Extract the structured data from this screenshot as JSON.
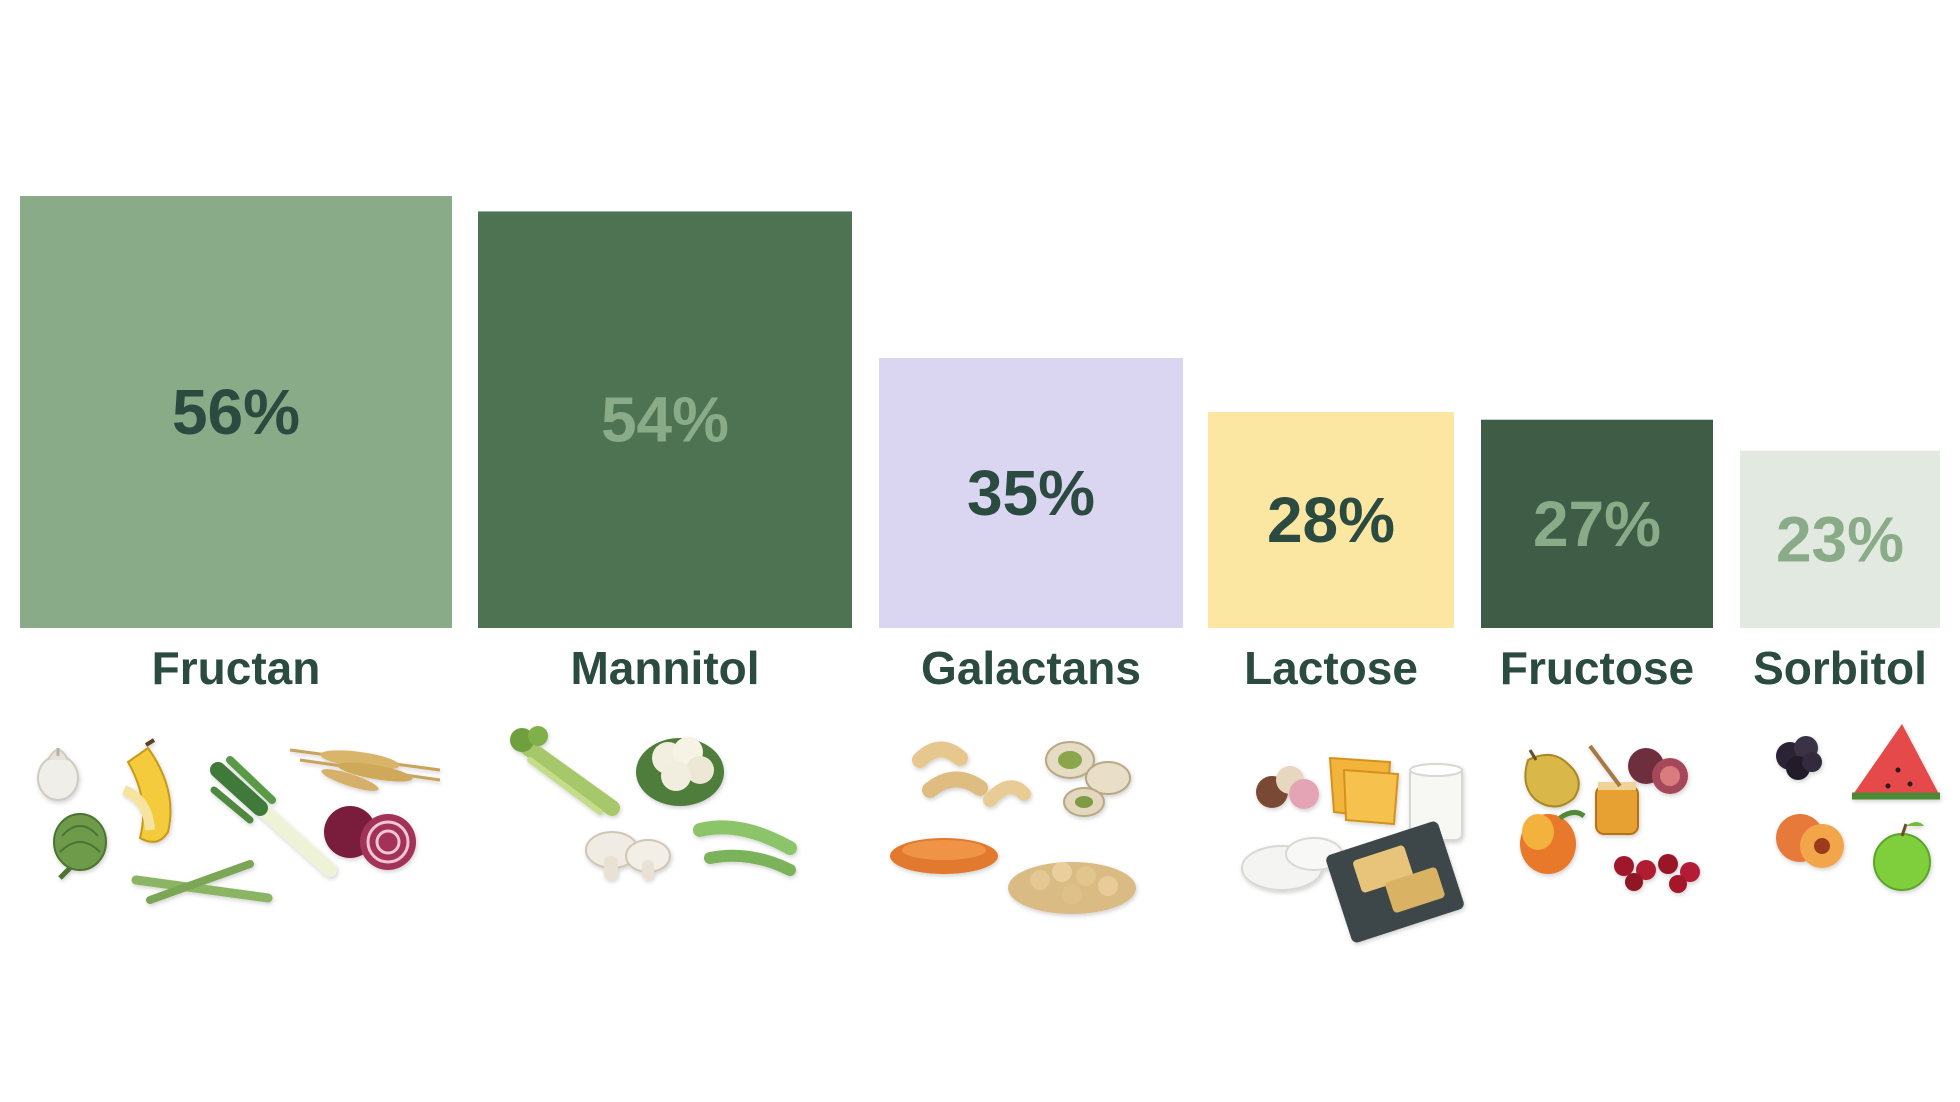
{
  "chart_data": {
    "type": "bar",
    "categories": [
      "Fructan",
      "Mannitol",
      "Galactans",
      "Lactose",
      "Fructose",
      "Sorbitol"
    ],
    "values": [
      56,
      54,
      35,
      28,
      27,
      23
    ],
    "value_labels": [
      "56%",
      "54%",
      "35%",
      "28%",
      "27%",
      "23%"
    ],
    "unit": "%",
    "title": "",
    "xlabel": "",
    "ylabel": "",
    "ylim": [
      0,
      56
    ],
    "grid": false,
    "legend": "none",
    "bar_colors": [
      "#8aab88",
      "#4e7352",
      "#dad5f0",
      "#fbe7a2",
      "#3f5c47",
      "#e1e9e0"
    ],
    "value_label_colors": [
      "#2b4a40",
      "#8aab88",
      "#2b4a40",
      "#2b4a40",
      "#8aab88",
      "#8aab88"
    ],
    "food_icons": [
      [
        "garlic",
        "banana",
        "leek",
        "wheat",
        "artichoke",
        "asparagus",
        "red-onion"
      ],
      [
        "celery",
        "cauliflower",
        "mushroom",
        "snow-peas"
      ],
      [
        "cashew",
        "pistachio",
        "red-lentils",
        "chickpeas"
      ],
      [
        "ice-cream",
        "cheese-slice",
        "milk-glass",
        "ricotta",
        "halloumi"
      ],
      [
        "pear",
        "honey",
        "fig",
        "mango",
        "cherries"
      ],
      [
        "blackberries",
        "watermelon",
        "peach",
        "green-apple"
      ]
    ]
  }
}
